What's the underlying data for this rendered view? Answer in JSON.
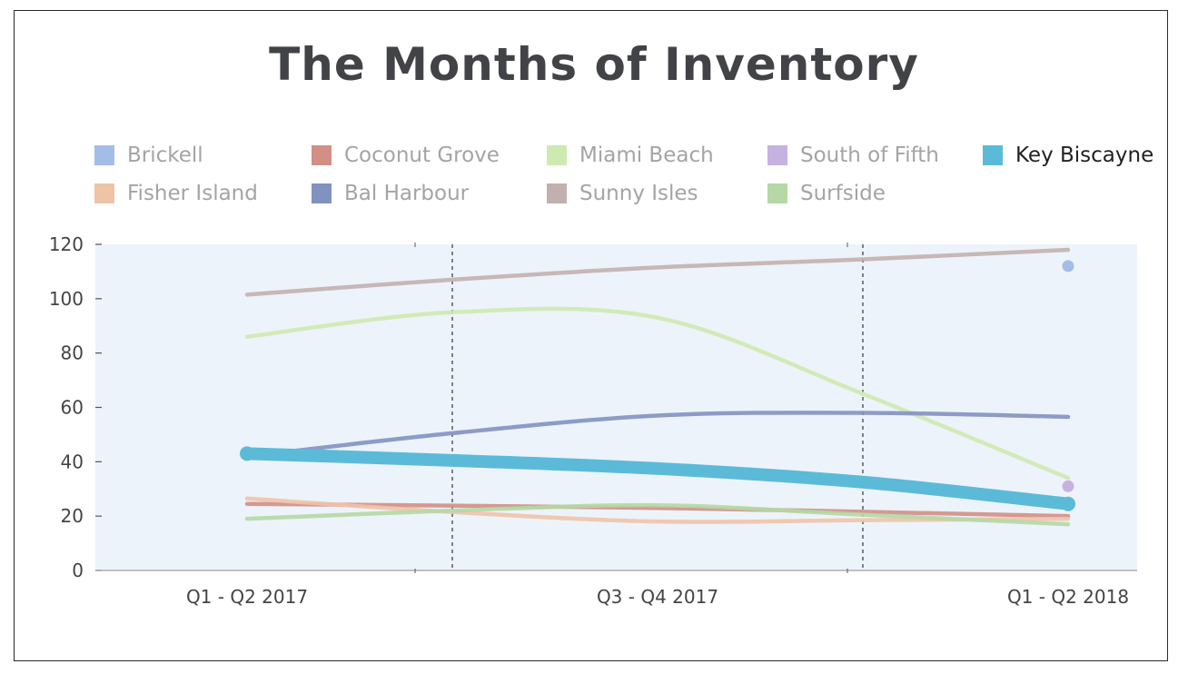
{
  "chart_data": {
    "type": "line",
    "title": "The Months of Inventory",
    "xlabel": "",
    "ylabel": "",
    "ylim": [
      0,
      120
    ],
    "yticks": [
      "0",
      "20",
      "40",
      "60",
      "80",
      "100",
      "120"
    ],
    "categories": [
      "Q1 - Q2 2017",
      "Q3 - Q4 2017",
      "Q1 - Q2 2018"
    ],
    "grid": false,
    "legend_position": "top",
    "highlighted_series": "Key Biscayne",
    "series": [
      {
        "name": "Brickell",
        "color": "#a4bde6",
        "x": [
          2
        ],
        "values": [
          112
        ]
      },
      {
        "name": "Coconut Grove",
        "color": "#d18f86",
        "x": [
          0,
          1,
          2
        ],
        "values": [
          24.5,
          23,
          20
        ]
      },
      {
        "name": "Miami Beach",
        "color": "#cdeab0",
        "x": [
          0,
          0.5,
          1,
          1.5,
          2
        ],
        "values": [
          86,
          95,
          93,
          65,
          34
        ]
      },
      {
        "name": "South of Fifth",
        "color": "#c6b2e0",
        "x": [
          2
        ],
        "values": [
          31
        ]
      },
      {
        "name": "Key Biscayne",
        "color": "#5cbad9",
        "x": [
          0,
          0.5,
          1,
          1.5,
          2
        ],
        "values": [
          43,
          40.5,
          37.5,
          32.5,
          24.5
        ]
      },
      {
        "name": "Fisher Island",
        "color": "#efc3a8",
        "x": [
          0,
          0.5,
          1,
          1.5,
          2
        ],
        "values": [
          26.5,
          21.5,
          18,
          18.5,
          19
        ]
      },
      {
        "name": "Bal Harbour",
        "color": "#8192c0",
        "x": [
          0,
          0.5,
          1,
          1.5,
          2
        ],
        "values": [
          42,
          50.5,
          57,
          58,
          56.5
        ]
      },
      {
        "name": "Sunny Isles",
        "color": "#c2b0ae",
        "x": [
          0,
          0.5,
          1,
          1.5,
          2
        ],
        "values": [
          101.5,
          107,
          111.5,
          114.5,
          118
        ]
      },
      {
        "name": "Surfside",
        "color": "#b5d8a5",
        "x": [
          0,
          0.5,
          1,
          1.5,
          2
        ],
        "values": [
          19,
          22,
          24,
          20.5,
          17
        ]
      }
    ]
  }
}
